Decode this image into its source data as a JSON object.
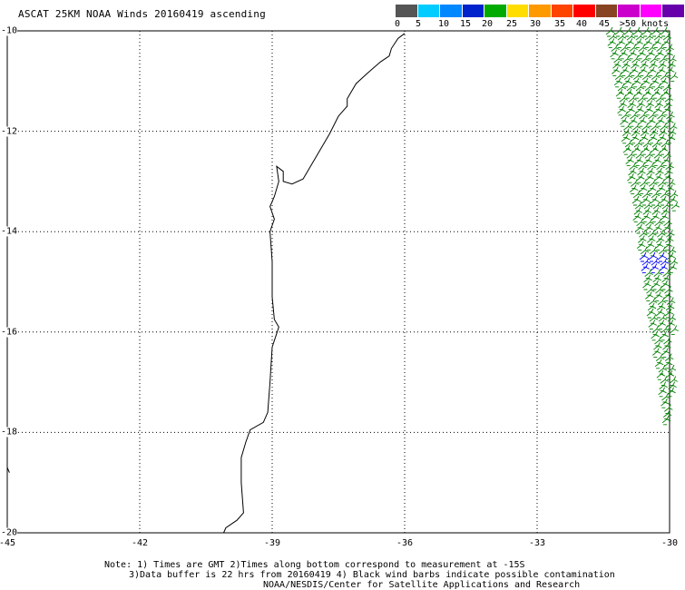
{
  "title": "ASCAT 25KM NOAA Winds 20160419 ascending",
  "legend": {
    "colors": [
      "#555555",
      "#00ccff",
      "#0088ff",
      "#0022cc",
      "#00aa00",
      "#ffdd00",
      "#ff9900",
      "#ff4400",
      "#ff0000",
      "#884422",
      "#cc00cc",
      "#ff00ff",
      "#6600aa"
    ],
    "labels": [
      "0",
      "5",
      "10",
      "15",
      "20",
      "25",
      "30",
      "35",
      "40",
      "45",
      ">50 knots"
    ]
  },
  "axes": {
    "lat_labels": [
      "-10",
      "-12",
      "-14",
      "-16",
      "-18",
      "-20"
    ],
    "lon_labels": [
      "-45",
      "-42",
      "-39",
      "-36",
      "-33",
      "-30"
    ]
  },
  "notes": {
    "line1": "Note: 1) Times are GMT 2)Times along bottom correspond to measurement at -15S",
    "line2": "3)Data buffer is 22 hrs from 20160419 4) Black wind barbs indicate possible contamination",
    "line3": "NOAA/NESDIS/Center for Satellite Applications and Research"
  },
  "map": {
    "lon_range": [
      -45,
      -30
    ],
    "lat_range": [
      -20,
      -10
    ],
    "coastline": [
      [
        -36.0,
        -10.05
      ],
      [
        -36.15,
        -10.15
      ],
      [
        -36.3,
        -10.35
      ],
      [
        -36.35,
        -10.5
      ],
      [
        -36.55,
        -10.62
      ],
      [
        -36.85,
        -10.85
      ],
      [
        -37.1,
        -11.05
      ],
      [
        -37.3,
        -11.35
      ],
      [
        -37.3,
        -11.5
      ],
      [
        -37.5,
        -11.7
      ],
      [
        -37.7,
        -12.05
      ],
      [
        -38.0,
        -12.5
      ],
      [
        -38.3,
        -12.95
      ],
      [
        -38.55,
        -13.05
      ],
      [
        -38.75,
        -13.0
      ],
      [
        -38.75,
        -12.8
      ],
      [
        -38.9,
        -12.7
      ],
      [
        -38.85,
        -13.0
      ],
      [
        -38.95,
        -13.3
      ],
      [
        -39.05,
        -13.5
      ],
      [
        -38.95,
        -13.75
      ],
      [
        -39.05,
        -14.0
      ],
      [
        -39.0,
        -14.6
      ],
      [
        -39.0,
        -15.3
      ],
      [
        -38.95,
        -15.75
      ],
      [
        -38.85,
        -15.9
      ],
      [
        -39.0,
        -16.3
      ],
      [
        -39.05,
        -17.0
      ],
      [
        -39.1,
        -17.6
      ],
      [
        -39.2,
        -17.8
      ],
      [
        -39.5,
        -17.95
      ],
      [
        -39.6,
        -18.2
      ],
      [
        -39.7,
        -18.5
      ],
      [
        -39.7,
        -19.0
      ],
      [
        -39.65,
        -19.6
      ],
      [
        -39.8,
        -19.75
      ],
      [
        -40.05,
        -19.9
      ],
      [
        -40.1,
        -20.0
      ]
    ],
    "island": [
      [
        -45.0,
        -18.7
      ],
      [
        -44.95,
        -18.8
      ]
    ],
    "wind_barbs_green": "green",
    "wind_barbs_blue": "blue"
  }
}
